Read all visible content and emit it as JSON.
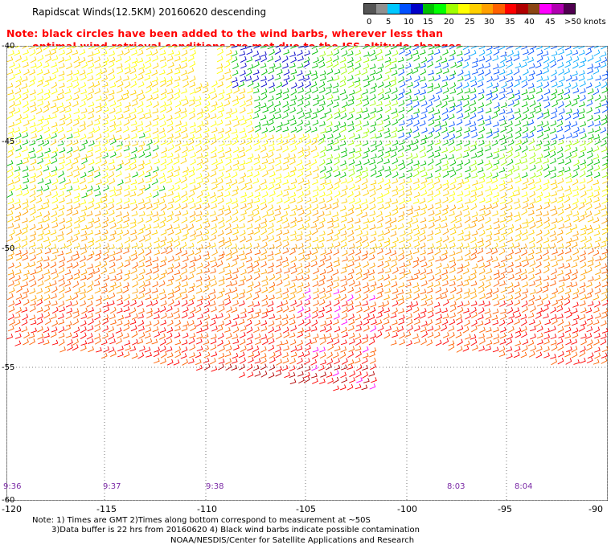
{
  "title": "Rapidscat Winds(12.5KM) 20160620 descending",
  "note": {
    "line1": "Note: black circles have been added to the wind barbs, wherever less than",
    "line2": "optimal wind retrieval conditions are met due to the ISS altitude changes."
  },
  "legend": {
    "colors": [
      "#555555",
      "#909090",
      "#00c8ff",
      "#0050ff",
      "#0000c8",
      "#00c000",
      "#00ff00",
      "#a0ff00",
      "#ffff00",
      "#ffd000",
      "#ffa000",
      "#ff6000",
      "#ff0000",
      "#b00000",
      "#8b4513",
      "#ff00ff",
      "#b000b0",
      "#500050"
    ],
    "labels": [
      "0",
      "5",
      "10",
      "15",
      "20",
      "25",
      "30",
      "35",
      "40",
      "45",
      ">50 knots"
    ]
  },
  "axes": {
    "lat_labels": [
      "-40",
      "-45",
      "-50",
      "-55",
      "-60"
    ],
    "lon_labels": [
      "-120",
      "-115",
      "-110",
      "-105",
      "-100",
      "-95",
      "-90"
    ]
  },
  "pass_times": [
    "9:36",
    "9:37",
    "9:38",
    "8:03",
    "8:04"
  ],
  "footer": {
    "line1": "Note: 1) Times are GMT 2)Times along bottom correspond to measurement at ~50S",
    "line2": "3)Data buffer is 22 hrs from 20160620 4) Black wind barbs indicate possible contamination",
    "line3": "NOAA/NESDIS/Center for Satellite Applications and Research"
  }
}
